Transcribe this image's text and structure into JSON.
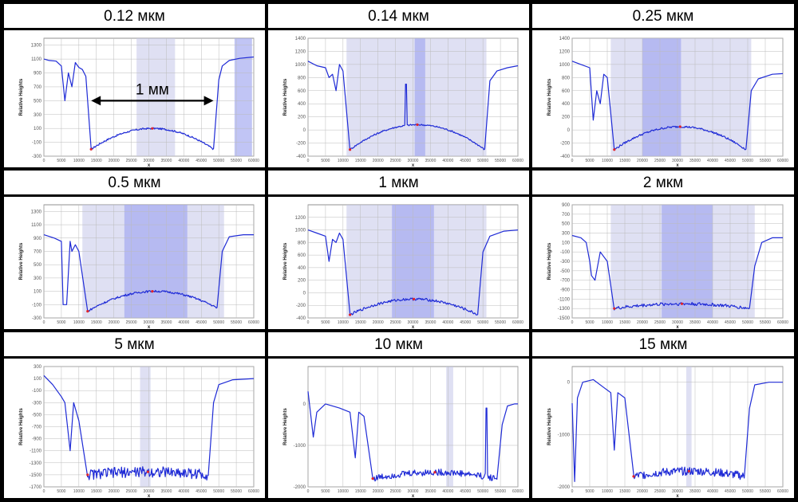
{
  "chart_data": [
    {
      "type": "line",
      "title": "0.12 мкм",
      "xlabel": "x",
      "ylabel": "Relative Heights",
      "xlim": [
        0,
        60000
      ],
      "ylim": [
        -300,
        1400
      ],
      "yticks": [
        -300,
        -100,
        100,
        300,
        500,
        700,
        900,
        1100,
        1300
      ],
      "xticks": [
        0,
        5000,
        10000,
        15000,
        20000,
        25000,
        30000,
        35000,
        40000,
        45000,
        50000,
        55000,
        60000
      ],
      "shaded": [
        [
          26500,
          37500
        ],
        [
          54500,
          59500
        ]
      ],
      "annotation": {
        "text": "1 мм",
        "x_from": 13500,
        "x_to": 48500,
        "y": 500
      },
      "profile": {
        "pre": [
          [
            0,
            1100
          ],
          [
            1500,
            1080
          ],
          [
            3500,
            1070
          ],
          [
            5000,
            1000
          ],
          [
            6000,
            500
          ],
          [
            7000,
            900
          ],
          [
            8000,
            700
          ],
          [
            9000,
            1050
          ],
          [
            10000,
            980
          ],
          [
            11000,
            950
          ],
          [
            12000,
            850
          ]
        ],
        "floor_left": -200,
        "floor_mid": 100,
        "floor_right": -200,
        "edge_l": 13500,
        "edge_r": 48500,
        "post": [
          [
            50000,
            800
          ],
          [
            51000,
            1000
          ],
          [
            53000,
            1080
          ],
          [
            56000,
            1110
          ],
          [
            60000,
            1130
          ]
        ],
        "noise": 12,
        "spikes": []
      }
    },
    {
      "type": "line",
      "title": "0.14 мкм",
      "xlabel": "x",
      "ylabel": "Relative Heights",
      "xlim": [
        0,
        60000
      ],
      "ylim": [
        -400,
        1400
      ],
      "yticks": [
        -400,
        -200,
        0,
        200,
        400,
        600,
        800,
        1000,
        1200,
        1400
      ],
      "xticks": [
        0,
        5000,
        10000,
        15000,
        20000,
        25000,
        30000,
        35000,
        40000,
        45000,
        50000,
        55000,
        60000
      ],
      "shaded": [
        [
          11000,
          51000
        ],
        [
          30500,
          33500
        ]
      ],
      "profile": {
        "pre": [
          [
            0,
            1050
          ],
          [
            2500,
            980
          ],
          [
            5000,
            950
          ],
          [
            6000,
            800
          ],
          [
            7000,
            850
          ],
          [
            8000,
            600
          ],
          [
            9000,
            1000
          ],
          [
            10000,
            900
          ]
        ],
        "floor_left": -300,
        "floor_mid": 80,
        "floor_right": -300,
        "edge_l": 12000,
        "edge_r": 50500,
        "post": [
          [
            52000,
            750
          ],
          [
            54000,
            900
          ],
          [
            57000,
            950
          ],
          [
            60000,
            980
          ]
        ],
        "noise": 12,
        "spikes": [
          [
            28000,
            700
          ]
        ]
      }
    },
    {
      "type": "line",
      "title": "0.25 мкм",
      "xlabel": "x",
      "ylabel": "Relative Heights",
      "xlim": [
        0,
        60000
      ],
      "ylim": [
        -400,
        1400
      ],
      "yticks": [
        -400,
        -200,
        0,
        200,
        400,
        600,
        800,
        1000,
        1200,
        1400
      ],
      "xticks": [
        0,
        5000,
        10000,
        15000,
        20000,
        25000,
        30000,
        35000,
        40000,
        45000,
        50000,
        55000,
        60000
      ],
      "shaded": [
        [
          11000,
          51000
        ],
        [
          20000,
          31000
        ]
      ],
      "profile": {
        "pre": [
          [
            0,
            1050
          ],
          [
            2500,
            1000
          ],
          [
            5000,
            950
          ],
          [
            6000,
            150
          ],
          [
            7000,
            600
          ],
          [
            8000,
            400
          ],
          [
            9000,
            850
          ],
          [
            10000,
            800
          ]
        ],
        "floor_left": -300,
        "floor_mid": 50,
        "floor_right": -300,
        "edge_l": 12000,
        "edge_r": 49500,
        "post": [
          [
            51000,
            600
          ],
          [
            53000,
            780
          ],
          [
            57000,
            850
          ],
          [
            60000,
            860
          ]
        ],
        "noise": 15,
        "spikes": []
      }
    },
    {
      "type": "line",
      "title": "0.5 мкм",
      "xlabel": "x",
      "ylabel": "Relative Heights",
      "xlim": [
        0,
        60000
      ],
      "ylim": [
        -300,
        1400
      ],
      "yticks": [
        -300,
        -100,
        100,
        300,
        500,
        700,
        900,
        1100,
        1300
      ],
      "xticks": [
        0,
        5000,
        10000,
        15000,
        20000,
        25000,
        30000,
        35000,
        40000,
        45000,
        50000,
        55000,
        60000
      ],
      "shaded": [
        [
          11000,
          51500
        ],
        [
          23000,
          41000
        ]
      ],
      "profile": {
        "pre": [
          [
            0,
            950
          ],
          [
            3000,
            900
          ],
          [
            5000,
            850
          ],
          [
            5500,
            -100
          ],
          [
            6500,
            -100
          ],
          [
            7500,
            850
          ],
          [
            8000,
            700
          ],
          [
            9000,
            800
          ],
          [
            10000,
            700
          ]
        ],
        "floor_left": -200,
        "floor_mid": 100,
        "floor_right": -150,
        "edge_l": 12500,
        "edge_r": 49500,
        "post": [
          [
            51000,
            700
          ],
          [
            53000,
            920
          ],
          [
            57000,
            950
          ],
          [
            60000,
            950
          ]
        ],
        "noise": 15,
        "spikes": []
      }
    },
    {
      "type": "line",
      "title": "1 мкм",
      "xlabel": "x",
      "ylabel": "Relative Heights",
      "xlim": [
        0,
        60000
      ],
      "ylim": [
        -400,
        1400
      ],
      "yticks": [
        -400,
        -200,
        0,
        200,
        400,
        600,
        800,
        1000,
        1200
      ],
      "xticks": [
        0,
        5000,
        10000,
        15000,
        20000,
        25000,
        30000,
        35000,
        40000,
        45000,
        50000,
        55000,
        60000
      ],
      "shaded": [
        [
          11000,
          51000
        ],
        [
          24000,
          36000
        ]
      ],
      "profile": {
        "pre": [
          [
            0,
            1000
          ],
          [
            2500,
            950
          ],
          [
            5000,
            900
          ],
          [
            6000,
            500
          ],
          [
            7000,
            850
          ],
          [
            8000,
            800
          ],
          [
            9000,
            950
          ],
          [
            10000,
            850
          ]
        ],
        "floor_left": -350,
        "floor_mid": -100,
        "floor_right": -350,
        "edge_l": 12000,
        "edge_r": 48500,
        "post": [
          [
            50000,
            650
          ],
          [
            52000,
            900
          ],
          [
            56000,
            980
          ],
          [
            60000,
            1000
          ]
        ],
        "noise": 20,
        "spikes": []
      }
    },
    {
      "type": "line",
      "title": "2 мкм",
      "xlabel": "x",
      "ylabel": "Relative Heights",
      "xlim": [
        0,
        60000
      ],
      "ylim": [
        -1500,
        900
      ],
      "yticks": [
        -1500,
        -1300,
        -1100,
        -900,
        -700,
        -500,
        -300,
        -100,
        100,
        300,
        500,
        700,
        900
      ],
      "xticks": [
        0,
        5000,
        10000,
        15000,
        20000,
        25000,
        30000,
        35000,
        40000,
        45000,
        50000,
        55000,
        60000
      ],
      "shaded": [
        [
          11000,
          52000
        ],
        [
          25500,
          40000
        ]
      ],
      "profile": {
        "pre": [
          [
            0,
            250
          ],
          [
            2500,
            200
          ],
          [
            4000,
            100
          ],
          [
            5000,
            -300
          ],
          [
            5500,
            -600
          ],
          [
            6500,
            -700
          ],
          [
            7000,
            -500
          ],
          [
            8000,
            -100
          ],
          [
            10000,
            -300
          ]
        ],
        "floor_left": -1300,
        "floor_mid": -1200,
        "floor_right": -1300,
        "edge_l": 12000,
        "edge_r": 50500,
        "post": [
          [
            52000,
            -400
          ],
          [
            54000,
            100
          ],
          [
            57000,
            200
          ],
          [
            60000,
            200
          ]
        ],
        "noise": 35,
        "spikes": []
      }
    },
    {
      "type": "line",
      "title": "5 мкм",
      "xlabel": "x",
      "ylabel": "Relative Heights",
      "xlim": [
        0,
        60000
      ],
      "ylim": [
        -1700,
        300
      ],
      "yticks": [
        -1700,
        -1500,
        -1300,
        -1100,
        -900,
        -700,
        -500,
        -300,
        -100,
        100,
        300
      ],
      "xticks": [
        0,
        5000,
        10000,
        15000,
        20000,
        25000,
        30000,
        35000,
        40000,
        45000,
        50000,
        55000,
        60000
      ],
      "shaded": [
        [
          27500,
          30500
        ]
      ],
      "profile": {
        "pre": [
          [
            0,
            150
          ],
          [
            2500,
            0
          ],
          [
            5000,
            -200
          ],
          [
            6000,
            -300
          ],
          [
            7500,
            -1100
          ],
          [
            8500,
            -300
          ],
          [
            10000,
            -600
          ]
        ],
        "floor_left": -1500,
        "floor_mid": -1450,
        "floor_right": -1500,
        "edge_l": 12500,
        "edge_r": 47000,
        "post": [
          [
            48500,
            -300
          ],
          [
            50000,
            0
          ],
          [
            54000,
            80
          ],
          [
            60000,
            100
          ]
        ],
        "noise": 90,
        "spikes": []
      }
    },
    {
      "type": "line",
      "title": "10 мкм",
      "xlabel": "x",
      "ylabel": "Relative Heights",
      "xlim": [
        0,
        60000
      ],
      "ylim": [
        -2000,
        900
      ],
      "yticks": [
        -2000,
        -1000,
        0
      ],
      "xticks": [
        0,
        5000,
        10000,
        15000,
        20000,
        25000,
        30000,
        35000,
        40000,
        45000,
        50000,
        55000,
        60000
      ],
      "shaded": [
        [
          39500,
          41500
        ]
      ],
      "profile": {
        "pre": [
          [
            0,
            300
          ],
          [
            1500,
            -800
          ],
          [
            2500,
            -200
          ],
          [
            5000,
            0
          ],
          [
            9000,
            -100
          ],
          [
            12000,
            -200
          ],
          [
            13500,
            -1300
          ],
          [
            14500,
            -200
          ],
          [
            16000,
            -300
          ]
        ],
        "floor_left": -1800,
        "floor_mid": -1650,
        "floor_right": -1800,
        "edge_l": 18500,
        "edge_r": 54000,
        "post": [
          [
            55500,
            -500
          ],
          [
            57000,
            -50
          ],
          [
            59000,
            0
          ],
          [
            60000,
            0
          ]
        ],
        "noise": 80,
        "spikes": [
          [
            51000,
            -100
          ]
        ]
      }
    },
    {
      "type": "line",
      "title": "15 мкм",
      "xlabel": "x",
      "ylabel": "Relative Heights",
      "xlim": [
        0,
        60000
      ],
      "ylim": [
        -2000,
        300
      ],
      "yticks": [
        -2000,
        -1000,
        0
      ],
      "xticks": [
        0,
        5000,
        10000,
        15000,
        20000,
        25000,
        30000,
        35000,
        40000,
        45000,
        50000,
        55000,
        60000
      ],
      "shaded": [
        [
          32500,
          34000
        ]
      ],
      "profile": {
        "pre": [
          [
            0,
            -400
          ],
          [
            700,
            -1900
          ],
          [
            1500,
            -300
          ],
          [
            3000,
            0
          ],
          [
            6000,
            50
          ],
          [
            9000,
            -100
          ],
          [
            11000,
            -200
          ],
          [
            12000,
            -1300
          ],
          [
            13000,
            -200
          ],
          [
            15000,
            -300
          ]
        ],
        "floor_left": -1800,
        "floor_mid": -1700,
        "floor_right": -1800,
        "edge_l": 17500,
        "edge_r": 49000,
        "post": [
          [
            50500,
            -500
          ],
          [
            52000,
            -50
          ],
          [
            56000,
            0
          ],
          [
            60000,
            0
          ]
        ],
        "noise": 80,
        "spikes": []
      }
    }
  ]
}
